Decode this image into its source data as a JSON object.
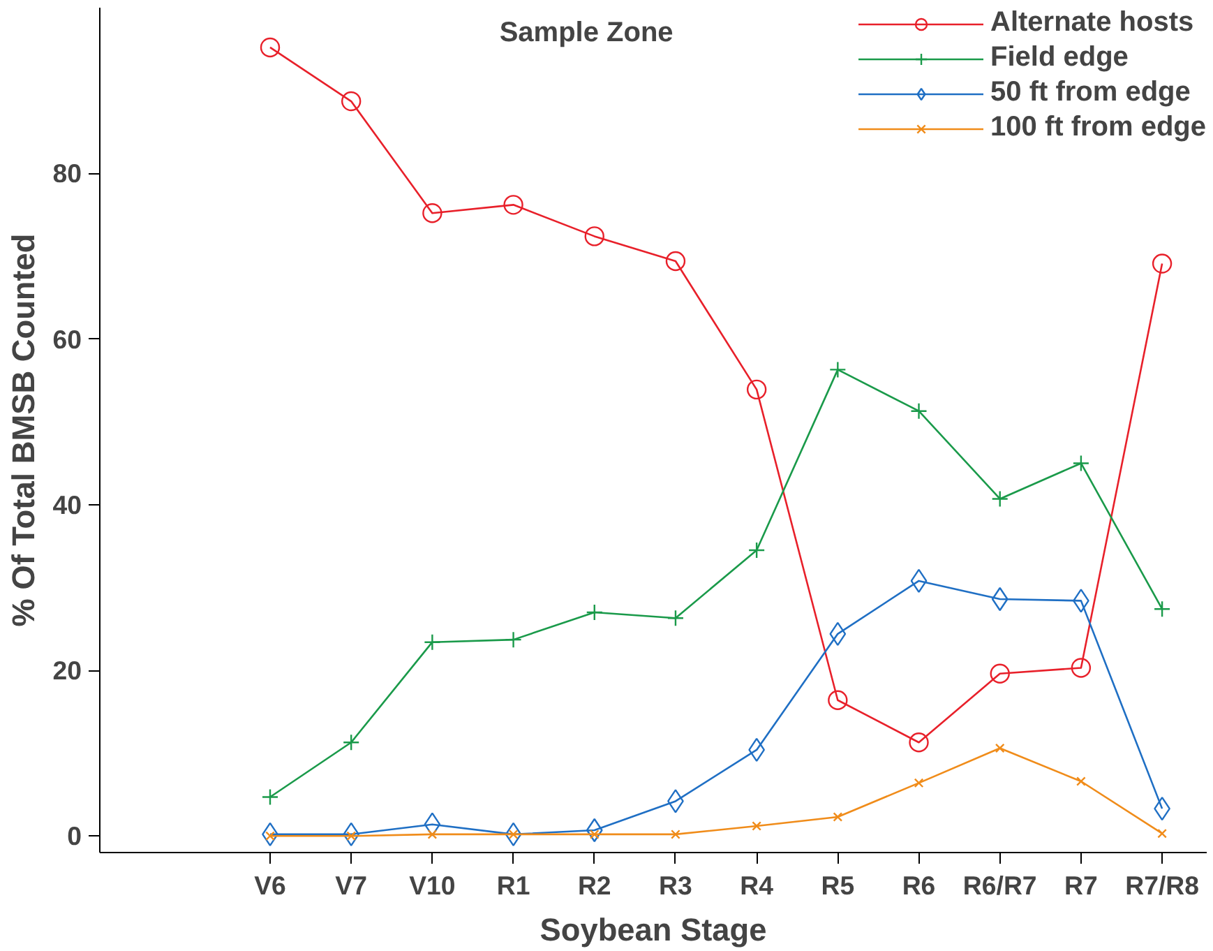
{
  "chart_data": {
    "type": "line",
    "title": "Sample Zone",
    "xlabel": "Soybean Stage",
    "ylabel": "% Of Total BMSB Counted",
    "categories": [
      "V6",
      "V7",
      "V10",
      "R1",
      "R2",
      "R3",
      "R4",
      "R5",
      "R6",
      "R6/R7",
      "R7",
      "R7/R8"
    ],
    "ylim": [
      -2,
      100
    ],
    "yticks": [
      0,
      20,
      40,
      60,
      80
    ],
    "grid": false,
    "legend": "top right",
    "series": [
      {
        "name": "Alternate hosts",
        "color": "#e8202a",
        "marker": "circle",
        "values": [
          95.2,
          88.7,
          75.2,
          76.2,
          72.4,
          69.4,
          53.9,
          16.4,
          11.3,
          19.6,
          20.3,
          69.1
        ]
      },
      {
        "name": "Field edge",
        "color": "#1a9a4a",
        "marker": "cross",
        "values": [
          4.7,
          11.3,
          23.4,
          23.7,
          27.0,
          26.3,
          34.5,
          56.3,
          51.3,
          40.7,
          45.0,
          27.4
        ]
      },
      {
        "name": "50 ft from edge",
        "color": "#1f6fc4",
        "marker": "diamond",
        "values": [
          0.2,
          0.2,
          1.4,
          0.2,
          0.7,
          4.2,
          10.4,
          24.4,
          30.8,
          28.6,
          28.4,
          3.3
        ]
      },
      {
        "name": "100 ft from edge",
        "color": "#f08c1a",
        "marker": "x",
        "values": [
          0,
          0,
          0.2,
          0.2,
          0.2,
          0.2,
          1.2,
          2.3,
          6.4,
          10.6,
          6.6,
          0.3
        ]
      }
    ]
  }
}
